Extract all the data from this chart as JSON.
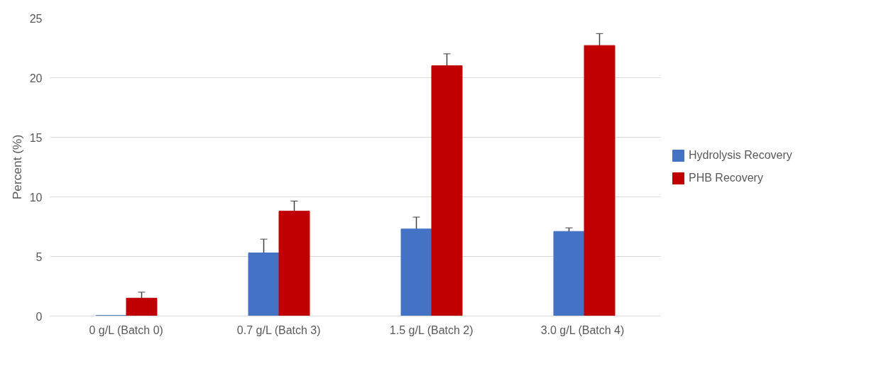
{
  "chart_data": {
    "type": "bar",
    "ylabel": "Percent (%)",
    "categories": [
      "0 g/L (Batch 0)",
      "0.7 g/L (Batch 3)",
      "1.5 g/L (Batch 2)",
      "3.0 g/L  (Batch 4)"
    ],
    "series": [
      {
        "name": "Hydrolysis Recovery",
        "color": "#4472c4",
        "values": [
          0.05,
          5.3,
          7.3,
          7.1
        ],
        "errors": [
          null,
          1.15,
          1.0,
          0.3
        ]
      },
      {
        "name": "PHB Recovery",
        "color": "#c00000",
        "values": [
          1.5,
          8.8,
          21.0,
          22.7
        ],
        "errors": [
          0.5,
          0.85,
          1.0,
          1.0
        ]
      }
    ],
    "ylim": [
      0,
      25
    ],
    "yticks": [
      0,
      5,
      10,
      15,
      20,
      25
    ],
    "grid": "y",
    "legend": "right"
  }
}
